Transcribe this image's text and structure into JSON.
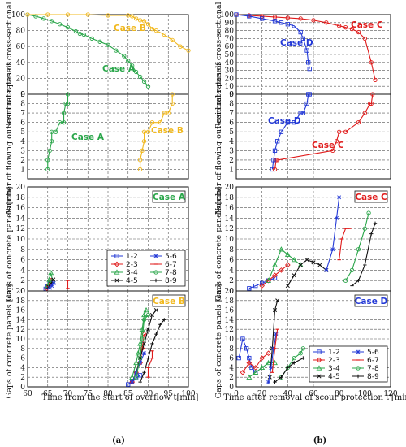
{
  "colors": {
    "case_a": "#2aa64a",
    "case_b": "#f1b81d",
    "case_c": "#e01b1b",
    "case_d": "#2238d6",
    "s12": "#2238d6",
    "s23": "#e01b1b",
    "s34": "#2aa64a",
    "s45": "#111111",
    "s56": "#2238d6",
    "s67": "#e01b1b",
    "s78": "#2aa64a",
    "s89": "#111111"
  },
  "labels": {
    "residual_a": "Residual rates of cross-sectional area[%]",
    "residual_b": "Residual rates of cross-sectional area[%]",
    "flowing_a": "Number of flowing out concrete panels",
    "flowing_b": "Number of flowing out concrete panels",
    "gaps_a1": "Gaps of concrete panels [cm]",
    "gaps_a2": "Gaps of concrete panels [cm]",
    "gaps_b1": "Gaps of concrete panels [cm]",
    "gaps_b2": "Gaps of concrete panels [cm]",
    "xlabel_a": "Time from the start of overflow t[min]",
    "xlabel_b": "Time after removal of scour protection t'[min]",
    "case_a": "Case A",
    "case_b": "Case B",
    "case_c": "Case C",
    "case_d": "Case D",
    "sub_a": "(a)",
    "sub_b": "(b)"
  },
  "chart_data": [
    {
      "type": "line",
      "panel": "a-residual",
      "xlim": [
        60,
        100
      ],
      "ylim": [
        0,
        100
      ],
      "yticks": [
        0,
        20,
        40,
        60,
        80,
        100
      ],
      "series": [
        {
          "name": "Case A",
          "color_key": "case_a",
          "marker": "circle",
          "x": [
            60,
            62,
            64,
            66,
            68,
            70,
            72,
            73,
            74,
            76,
            78,
            80,
            82,
            84,
            85,
            86,
            87,
            88,
            89,
            90
          ],
          "y": [
            100,
            98,
            95,
            92,
            88,
            84,
            79,
            76,
            75,
            70,
            66,
            62,
            55,
            48,
            42,
            36,
            28,
            22,
            16,
            10
          ]
        },
        {
          "name": "Case B",
          "color_key": "case_b",
          "marker": "circle",
          "x": [
            60,
            65,
            70,
            75,
            80,
            85,
            86,
            87,
            88,
            89,
            90,
            91,
            92,
            94,
            96,
            98,
            100
          ],
          "y": [
            100,
            100,
            100,
            100,
            99,
            99,
            98,
            95,
            93,
            92,
            88,
            82,
            80,
            75,
            68,
            60,
            55
          ]
        }
      ]
    },
    {
      "type": "line",
      "panel": "a-flowing",
      "xlim": [
        60,
        100
      ],
      "ylim": [
        0,
        9
      ],
      "yticks": [
        1,
        2,
        3,
        4,
        5,
        6,
        7,
        8,
        9
      ],
      "series": [
        {
          "name": "Case A",
          "color_key": "case_a",
          "marker": "circle",
          "x": [
            65,
            65,
            65.5,
            66,
            66,
            67,
            68,
            69,
            69,
            69.5,
            70,
            70
          ],
          "y": [
            1,
            2,
            3,
            4,
            5,
            5,
            6,
            6,
            7,
            8,
            8,
            9
          ]
        },
        {
          "name": "Case B",
          "color_key": "case_b",
          "marker": "circle",
          "x": [
            88,
            88,
            88.5,
            89,
            89,
            90,
            91,
            93,
            94,
            95,
            96,
            96
          ],
          "y": [
            1,
            2,
            3,
            4,
            5,
            5,
            6,
            6,
            7,
            7,
            8,
            9
          ]
        }
      ]
    },
    {
      "type": "line",
      "panel": "a-gaps-caseA",
      "case": "Case A",
      "xlim": [
        60,
        100
      ],
      "ylim": [
        0,
        20
      ],
      "yticks": [
        0,
        2,
        4,
        6,
        8,
        10,
        12,
        14,
        16,
        18,
        20
      ],
      "legend": [
        "1-2",
        "2-3",
        "3-4",
        "4-5",
        "5-6",
        "6-7",
        "7-8",
        "8-9"
      ],
      "series": [
        {
          "name": "1-2",
          "color_key": "s12",
          "marker": "square",
          "x": [
            64.5,
            65,
            65.5,
            66
          ],
          "y": [
            0.4,
            0.9,
            1.4,
            1.8
          ]
        },
        {
          "name": "2-3",
          "color_key": "s23",
          "marker": "diamond",
          "x": [
            64.8,
            65.3,
            65.8
          ],
          "y": [
            0.5,
            1.2,
            2.0
          ]
        },
        {
          "name": "3-4",
          "color_key": "s34",
          "marker": "triangle",
          "x": [
            65,
            65.4,
            65.8,
            66.2
          ],
          "y": [
            1.0,
            2.2,
            3.5,
            2.0
          ]
        },
        {
          "name": "4-5",
          "color_key": "s45",
          "marker": "x",
          "x": [
            65.2,
            65.8,
            66.4
          ],
          "y": [
            0.8,
            1.4,
            2.2
          ]
        },
        {
          "name": "5-6",
          "color_key": "s56",
          "marker": "asterisk",
          "x": [
            65.5,
            66,
            66.5
          ],
          "y": [
            0.6,
            1.0,
            1.5
          ]
        },
        {
          "name": "6-7",
          "color_key": "s67",
          "marker": "bar",
          "x": [
            70,
            70
          ],
          "y": [
            0.5,
            2.0
          ]
        }
      ]
    },
    {
      "type": "line",
      "panel": "a-gaps-caseB",
      "case": "Case B",
      "xlim": [
        60,
        100
      ],
      "ylim": [
        0,
        20
      ],
      "yticks": [
        0,
        2,
        4,
        6,
        8,
        10,
        12,
        14,
        16,
        18,
        20
      ],
      "xticks": [
        60,
        65,
        70,
        75,
        80,
        85,
        90,
        95,
        100
      ],
      "series": [
        {
          "name": "1-2",
          "color_key": "s12",
          "marker": "square",
          "x": [
            85,
            86,
            87,
            88
          ],
          "y": [
            0.5,
            1.2,
            1.8,
            2.4
          ]
        },
        {
          "name": "2-3",
          "color_key": "s23",
          "marker": "diamond",
          "x": [
            86,
            87,
            88,
            88.5,
            89
          ],
          "y": [
            1,
            3,
            5,
            8,
            11
          ]
        },
        {
          "name": "3-4",
          "color_key": "s34",
          "marker": "triangle",
          "x": [
            86,
            87,
            87.5,
            88,
            88.5,
            89,
            89.5
          ],
          "y": [
            2,
            5,
            7,
            9,
            12,
            15,
            16
          ]
        },
        {
          "name": "4-5",
          "color_key": "s45",
          "marker": "x",
          "x": [
            87,
            88,
            89,
            90,
            91,
            92
          ],
          "y": [
            3,
            6,
            9,
            12,
            15,
            16
          ]
        },
        {
          "name": "5-6",
          "color_key": "s56",
          "marker": "asterisk",
          "x": [
            86,
            87,
            88,
            89
          ],
          "y": [
            1,
            3,
            5,
            7
          ]
        },
        {
          "name": "6-7",
          "color_key": "s67",
          "marker": "bar",
          "x": [
            90,
            90,
            91,
            91
          ],
          "y": [
            2,
            4,
            6,
            7.5
          ]
        },
        {
          "name": "7-8",
          "color_key": "s78",
          "marker": "circle",
          "x": [
            87,
            88,
            88.5,
            89,
            90
          ],
          "y": [
            2,
            6,
            10,
            14,
            15
          ]
        },
        {
          "name": "8-9",
          "color_key": "s89",
          "marker": "plus",
          "x": [
            88,
            89,
            90,
            91,
            92,
            93,
            94
          ],
          "y": [
            1,
            3,
            6,
            9,
            11,
            13,
            14
          ]
        }
      ]
    },
    {
      "type": "line",
      "panel": "b-residual",
      "xlim": [
        0,
        120
      ],
      "ylim": [
        0,
        100
      ],
      "yticks": [
        0,
        10,
        20,
        30,
        40,
        50,
        60,
        70,
        80,
        90,
        100
      ],
      "series": [
        {
          "name": "Case C",
          "color_key": "case_c",
          "marker": "circle",
          "x": [
            0,
            10,
            20,
            30,
            40,
            50,
            60,
            70,
            80,
            85,
            90,
            95,
            100,
            105,
            108
          ],
          "y": [
            100,
            99,
            98,
            97,
            96,
            95,
            93,
            90,
            86,
            84,
            82,
            78,
            70,
            40,
            18
          ]
        },
        {
          "name": "Case D",
          "color_key": "case_d",
          "marker": "square",
          "x": [
            0,
            10,
            20,
            30,
            35,
            40,
            45,
            50,
            52,
            55,
            56,
            57
          ],
          "y": [
            100,
            98,
            95,
            92,
            90,
            88,
            86,
            78,
            70,
            55,
            40,
            32
          ]
        }
      ]
    },
    {
      "type": "line",
      "panel": "b-flowing",
      "xlim": [
        0,
        120
      ],
      "ylim": [
        0,
        9
      ],
      "yticks": [
        1,
        2,
        3,
        4,
        5,
        6,
        7,
        8,
        9
      ],
      "series": [
        {
          "name": "Case C",
          "color_key": "case_c",
          "marker": "circle",
          "x": [
            30,
            31,
            32,
            75,
            78,
            80,
            85,
            95,
            100,
            104,
            105,
            106
          ],
          "y": [
            1,
            2,
            2,
            3,
            4,
            5,
            5,
            6,
            7,
            8,
            8,
            9
          ]
        },
        {
          "name": "Case D",
          "color_key": "case_d",
          "marker": "square",
          "x": [
            28,
            29,
            30,
            32,
            35,
            40,
            45,
            50,
            52,
            55,
            56,
            57
          ],
          "y": [
            1,
            2,
            3,
            4,
            5,
            6,
            6,
            7,
            7,
            8,
            9,
            9
          ]
        }
      ]
    },
    {
      "type": "line",
      "panel": "b-gaps-caseC",
      "case": "Case C",
      "xlim": [
        0,
        120
      ],
      "ylim": [
        0,
        20
      ],
      "yticks": [
        0,
        2,
        4,
        6,
        8,
        10,
        12,
        14,
        16,
        18,
        20
      ],
      "series": [
        {
          "name": "1-2",
          "color_key": "s12",
          "marker": "square",
          "x": [
            10,
            15,
            20,
            25,
            30
          ],
          "y": [
            0.5,
            1.0,
            1.5,
            2.0,
            2.5
          ]
        },
        {
          "name": "2-3",
          "color_key": "s23",
          "marker": "diamond",
          "x": [
            20,
            25,
            30,
            35,
            40
          ],
          "y": [
            1,
            2,
            3,
            4,
            5
          ]
        },
        {
          "name": "3-4",
          "color_key": "s34",
          "marker": "triangle",
          "x": [
            25,
            30,
            35,
            40,
            45,
            50
          ],
          "y": [
            2,
            5,
            8,
            7,
            6,
            5
          ]
        },
        {
          "name": "4-5",
          "color_key": "s45",
          "marker": "x",
          "x": [
            40,
            45,
            50,
            55,
            60,
            65,
            70
          ],
          "y": [
            1,
            3,
            5,
            6,
            5.5,
            5,
            4
          ]
        },
        {
          "name": "5-6",
          "color_key": "s56",
          "marker": "asterisk",
          "x": [
            70,
            75,
            78,
            80
          ],
          "y": [
            4,
            8,
            14,
            18
          ]
        },
        {
          "name": "6-7",
          "color_key": "s67",
          "marker": "bar",
          "x": [
            80,
            82,
            85,
            88
          ],
          "y": [
            6,
            10,
            12,
            12
          ]
        },
        {
          "name": "7-8",
          "color_key": "s78",
          "marker": "circle",
          "x": [
            85,
            90,
            95,
            100,
            103
          ],
          "y": [
            2,
            4,
            8,
            12,
            15
          ]
        },
        {
          "name": "8-9",
          "color_key": "s89",
          "marker": "plus",
          "x": [
            90,
            95,
            100,
            105,
            108
          ],
          "y": [
            1,
            2,
            5,
            11,
            13
          ]
        }
      ]
    },
    {
      "type": "line",
      "panel": "b-gaps-caseD",
      "case": "Case D",
      "xlim": [
        0,
        120
      ],
      "ylim": [
        0,
        20
      ],
      "yticks": [
        0,
        2,
        4,
        6,
        8,
        10,
        12,
        14,
        16,
        18,
        20
      ],
      "xticks": [
        0,
        20,
        40,
        60,
        80,
        100,
        120
      ],
      "legend": [
        "1-2",
        "2-3",
        "3-4",
        "4-5",
        "5-6",
        "6-7",
        "7-8",
        "8-9"
      ],
      "series": [
        {
          "name": "1-2",
          "color_key": "s12",
          "marker": "square",
          "x": [
            2,
            5,
            8,
            10,
            12,
            15
          ],
          "y": [
            6,
            10,
            8,
            6,
            4,
            3
          ]
        },
        {
          "name": "2-3",
          "color_key": "s23",
          "marker": "diamond",
          "x": [
            5,
            10,
            15,
            20,
            25
          ],
          "y": [
            3,
            5,
            4,
            6,
            7
          ]
        },
        {
          "name": "3-4",
          "color_key": "s34",
          "marker": "triangle",
          "x": [
            10,
            15,
            20,
            25,
            30
          ],
          "y": [
            2,
            3,
            4,
            5,
            5
          ]
        },
        {
          "name": "4-5",
          "color_key": "s45",
          "marker": "x",
          "x": [
            26,
            28,
            30,
            32
          ],
          "y": [
            2,
            8,
            16,
            18
          ]
        },
        {
          "name": "5-6",
          "color_key": "s56",
          "marker": "asterisk",
          "x": [
            25,
            27,
            29,
            31
          ],
          "y": [
            1,
            4,
            8,
            11
          ]
        },
        {
          "name": "6-7",
          "color_key": "s67",
          "marker": "bar",
          "x": [
            28,
            30,
            32
          ],
          "y": [
            3,
            8,
            12
          ]
        },
        {
          "name": "7-8",
          "color_key": "s78",
          "marker": "circle",
          "x": [
            35,
            40,
            45,
            50,
            52
          ],
          "y": [
            2,
            4,
            6,
            7,
            8
          ]
        },
        {
          "name": "8-9",
          "color_key": "s89",
          "marker": "plus",
          "x": [
            30,
            35,
            40,
            45,
            52
          ],
          "y": [
            1,
            2,
            4,
            5,
            6
          ]
        }
      ]
    }
  ]
}
